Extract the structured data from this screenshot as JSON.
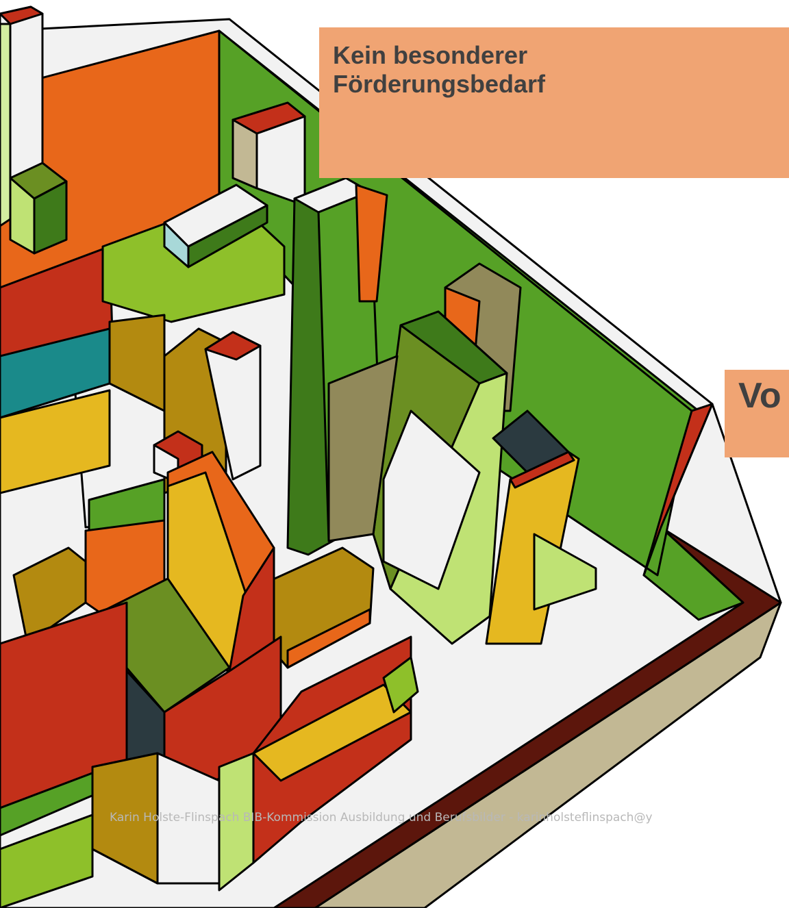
{
  "slide": {
    "box_title": "Kein besonderer Förderungsbedarf",
    "side_title": "Vo",
    "footer": "Karin Holste-Flinspach BIB-Kommission Ausbildung und Berufsbilder - karinholsteflinspach@y"
  }
}
